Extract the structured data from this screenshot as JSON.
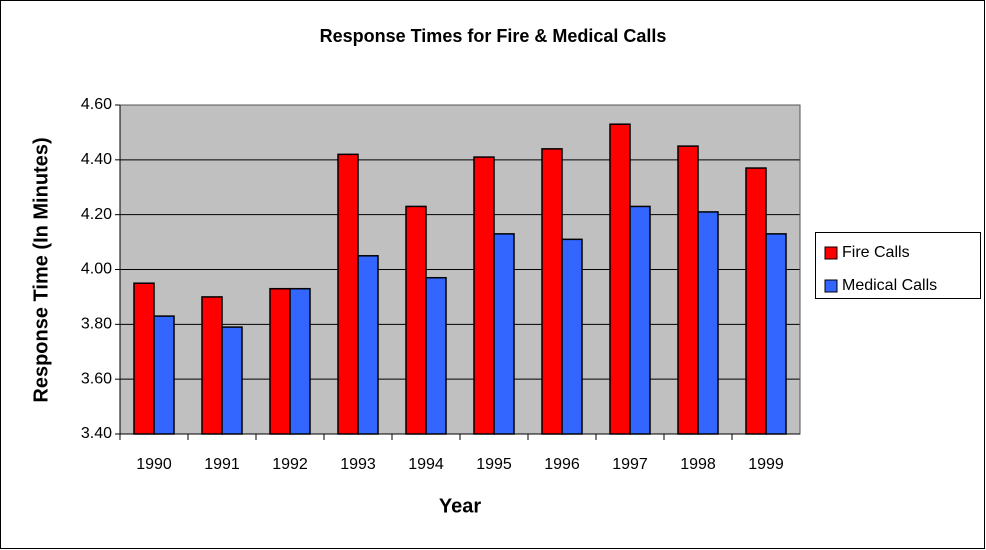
{
  "chart_data": {
    "type": "bar",
    "title": "Response Times for Fire & Medical Calls",
    "x_label": "Year",
    "y_label": "Response Time (In Minutes)",
    "categories": [
      "1990",
      "1991",
      "1992",
      "1993",
      "1994",
      "1995",
      "1996",
      "1997",
      "1998",
      "1999"
    ],
    "series": [
      {
        "name": "Fire Calls",
        "color": "#ff0000",
        "values": [
          3.95,
          3.9,
          3.93,
          4.42,
          4.23,
          4.41,
          4.44,
          4.53,
          4.45,
          4.37
        ]
      },
      {
        "name": "Medical Calls",
        "color": "#3366ff",
        "values": [
          3.83,
          3.79,
          3.93,
          4.05,
          3.97,
          4.13,
          4.11,
          4.23,
          4.21,
          4.13
        ]
      }
    ],
    "ylim": [
      3.4,
      4.6
    ],
    "yticks": [
      {
        "value": 3.4,
        "label": "3.40"
      },
      {
        "value": 3.6,
        "label": "3.60"
      },
      {
        "value": 3.8,
        "label": "3.80"
      },
      {
        "value": 4.0,
        "label": "4.00"
      },
      {
        "value": 4.2,
        "label": "4.20"
      },
      {
        "value": 4.4,
        "label": "4.40"
      },
      {
        "value": 4.6,
        "label": "4.60"
      }
    ],
    "grid": true,
    "legend": "right"
  }
}
